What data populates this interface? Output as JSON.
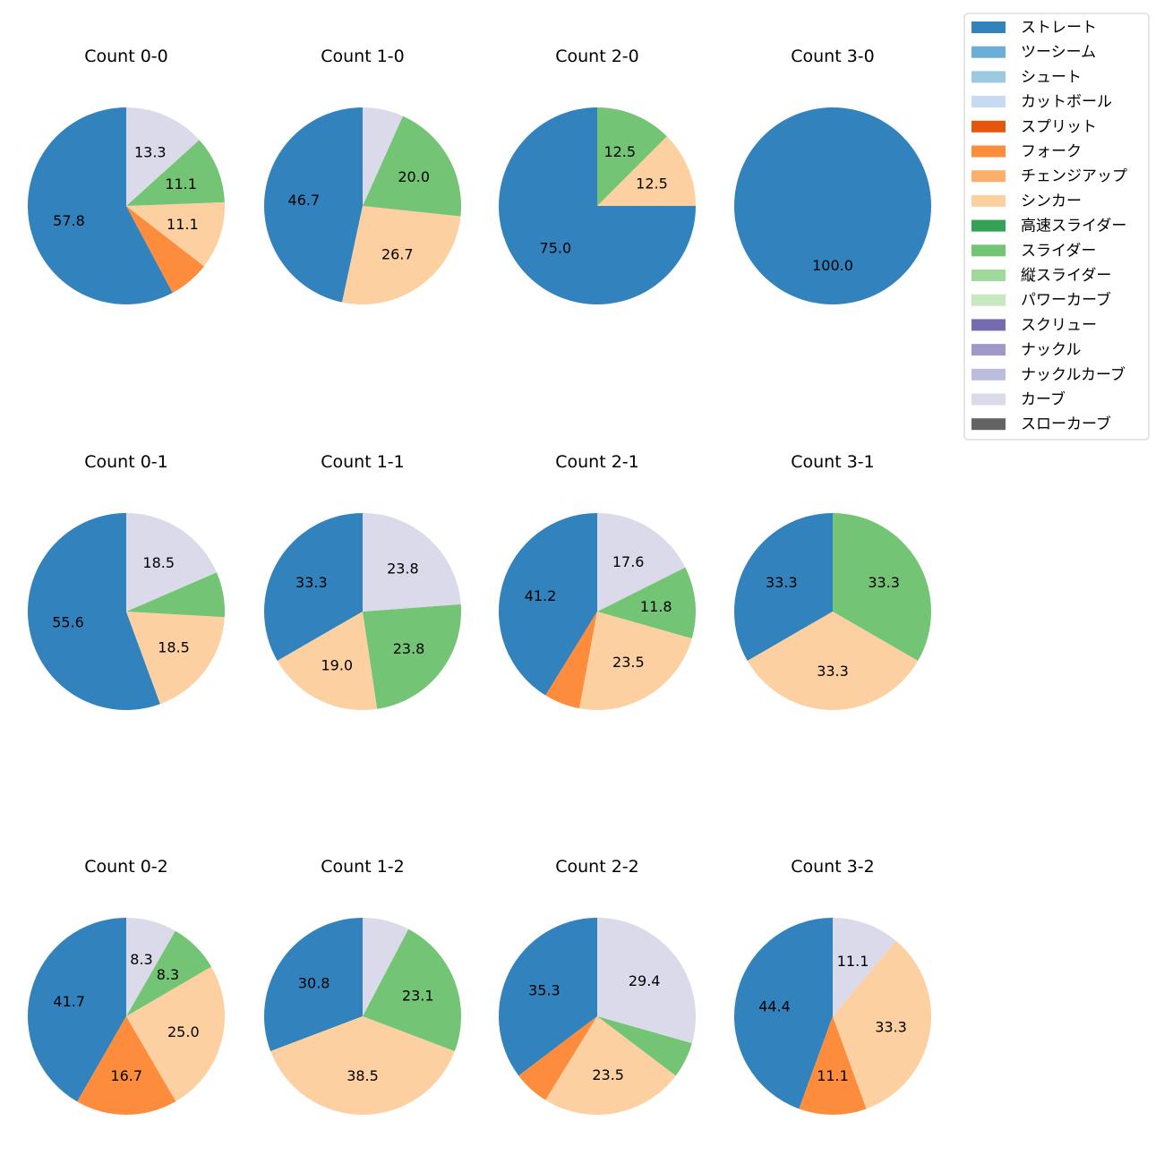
{
  "categories": [
    {
      "name": "ストレート",
      "color": "#3182bd"
    },
    {
      "name": "ツーシーム",
      "color": "#6baed6"
    },
    {
      "name": "シュート",
      "color": "#9ecae1"
    },
    {
      "name": "カットボール",
      "color": "#c6dbef"
    },
    {
      "name": "スプリット",
      "color": "#e6550d"
    },
    {
      "name": "フォーク",
      "color": "#fd8d3c"
    },
    {
      "name": "チェンジアップ",
      "color": "#fdae6b"
    },
    {
      "name": "シンカー",
      "color": "#fdd0a2"
    },
    {
      "name": "高速スライダー",
      "color": "#31a354"
    },
    {
      "name": "スライダー",
      "color": "#74c476"
    },
    {
      "name": "縦スライダー",
      "color": "#a1d99b"
    },
    {
      "name": "パワーカーブ",
      "color": "#c7e9c0"
    },
    {
      "name": "スクリュー",
      "color": "#756bb1"
    },
    {
      "name": "ナックル",
      "color": "#9e9ac8"
    },
    {
      "name": "ナックルカーブ",
      "color": "#bcbddc"
    },
    {
      "name": "カーブ",
      "color": "#dadaeb"
    },
    {
      "name": "スローカーブ",
      "color": "#636363"
    }
  ],
  "chart_data": [
    {
      "type": "pie",
      "title": "Count 0-0",
      "slices": [
        {
          "category": "ストレート",
          "value": 57.8,
          "label": "57.8"
        },
        {
          "category": "フォーク",
          "value": 6.7,
          "label": ""
        },
        {
          "category": "シンカー",
          "value": 11.1,
          "label": "11.1"
        },
        {
          "category": "スライダー",
          "value": 11.1,
          "label": "11.1"
        },
        {
          "category": "カーブ",
          "value": 13.3,
          "label": "13.3"
        }
      ]
    },
    {
      "type": "pie",
      "title": "Count 1-0",
      "slices": [
        {
          "category": "ストレート",
          "value": 46.7,
          "label": "46.7"
        },
        {
          "category": "シンカー",
          "value": 26.7,
          "label": "26.7"
        },
        {
          "category": "スライダー",
          "value": 20.0,
          "label": "20.0"
        },
        {
          "category": "カーブ",
          "value": 6.7,
          "label": ""
        }
      ]
    },
    {
      "type": "pie",
      "title": "Count 2-0",
      "slices": [
        {
          "category": "ストレート",
          "value": 75.0,
          "label": "75.0"
        },
        {
          "category": "シンカー",
          "value": 12.5,
          "label": "12.5"
        },
        {
          "category": "スライダー",
          "value": 12.5,
          "label": "12.5"
        }
      ]
    },
    {
      "type": "pie",
      "title": "Count 3-0",
      "slices": [
        {
          "category": "ストレート",
          "value": 100.0,
          "label": "100.0"
        }
      ]
    },
    {
      "type": "pie",
      "title": "Count 0-1",
      "slices": [
        {
          "category": "ストレート",
          "value": 55.6,
          "label": "55.6"
        },
        {
          "category": "シンカー",
          "value": 18.5,
          "label": "18.5"
        },
        {
          "category": "スライダー",
          "value": 7.4,
          "label": ""
        },
        {
          "category": "カーブ",
          "value": 18.5,
          "label": "18.5"
        }
      ]
    },
    {
      "type": "pie",
      "title": "Count 1-1",
      "slices": [
        {
          "category": "ストレート",
          "value": 33.3,
          "label": "33.3"
        },
        {
          "category": "シンカー",
          "value": 19.0,
          "label": "19.0"
        },
        {
          "category": "スライダー",
          "value": 23.8,
          "label": "23.8"
        },
        {
          "category": "カーブ",
          "value": 23.8,
          "label": "23.8"
        }
      ]
    },
    {
      "type": "pie",
      "title": "Count 2-1",
      "slices": [
        {
          "category": "ストレート",
          "value": 41.2,
          "label": "41.2"
        },
        {
          "category": "フォーク",
          "value": 5.9,
          "label": ""
        },
        {
          "category": "シンカー",
          "value": 23.5,
          "label": "23.5"
        },
        {
          "category": "スライダー",
          "value": 11.8,
          "label": "11.8"
        },
        {
          "category": "カーブ",
          "value": 17.6,
          "label": "17.6"
        }
      ]
    },
    {
      "type": "pie",
      "title": "Count 3-1",
      "slices": [
        {
          "category": "ストレート",
          "value": 33.3,
          "label": "33.3"
        },
        {
          "category": "シンカー",
          "value": 33.3,
          "label": "33.3"
        },
        {
          "category": "スライダー",
          "value": 33.3,
          "label": "33.3"
        }
      ]
    },
    {
      "type": "pie",
      "title": "Count 0-2",
      "slices": [
        {
          "category": "ストレート",
          "value": 41.7,
          "label": "41.7"
        },
        {
          "category": "フォーク",
          "value": 16.7,
          "label": "16.7"
        },
        {
          "category": "シンカー",
          "value": 25.0,
          "label": "25.0"
        },
        {
          "category": "スライダー",
          "value": 8.3,
          "label": "8.3"
        },
        {
          "category": "カーブ",
          "value": 8.3,
          "label": "8.3"
        }
      ]
    },
    {
      "type": "pie",
      "title": "Count 1-2",
      "slices": [
        {
          "category": "ストレート",
          "value": 30.8,
          "label": "30.8"
        },
        {
          "category": "シンカー",
          "value": 38.5,
          "label": "38.5"
        },
        {
          "category": "スライダー",
          "value": 23.1,
          "label": "23.1"
        },
        {
          "category": "カーブ",
          "value": 7.7,
          "label": ""
        }
      ]
    },
    {
      "type": "pie",
      "title": "Count 2-2",
      "slices": [
        {
          "category": "ストレート",
          "value": 35.3,
          "label": "35.3"
        },
        {
          "category": "フォーク",
          "value": 5.9,
          "label": ""
        },
        {
          "category": "シンカー",
          "value": 23.5,
          "label": "23.5"
        },
        {
          "category": "スライダー",
          "value": 5.9,
          "label": ""
        },
        {
          "category": "カーブ",
          "value": 29.4,
          "label": "29.4"
        }
      ]
    },
    {
      "type": "pie",
      "title": "Count 3-2",
      "slices": [
        {
          "category": "ストレート",
          "value": 44.4,
          "label": "44.4"
        },
        {
          "category": "フォーク",
          "value": 11.1,
          "label": "11.1"
        },
        {
          "category": "シンカー",
          "value": 33.3,
          "label": "33.3"
        },
        {
          "category": "カーブ",
          "value": 11.1,
          "label": "11.1"
        }
      ]
    }
  ]
}
